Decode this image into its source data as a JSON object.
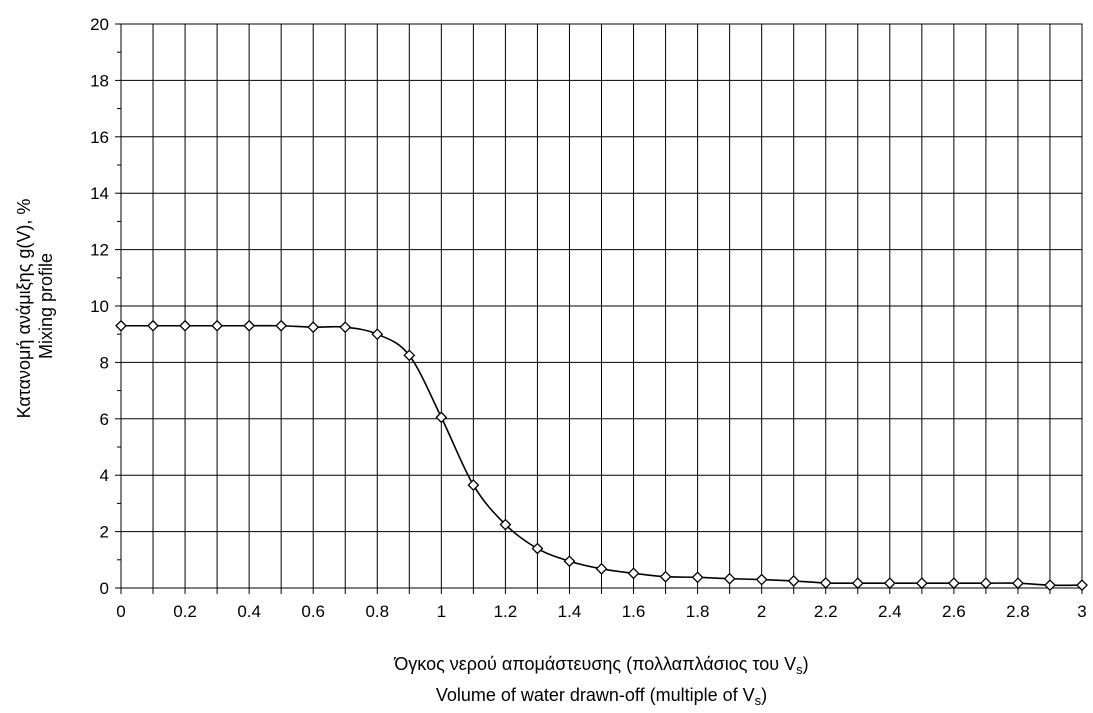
{
  "chart_data": {
    "type": "line",
    "title": "",
    "xlabel_lines": [
      {
        "text": "Όγκος νερού απομάστευσης (πολλαπλάσιος του V",
        "sub": "s",
        "suffix": ")"
      },
      {
        "text": "Volume of water drawn-off (multiple of V",
        "sub": "s",
        "suffix": ")"
      }
    ],
    "ylabel_lines": [
      "Κατανομή ανάμιξης g(V), %",
      "Mixing profile"
    ],
    "xlim": [
      0,
      3
    ],
    "ylim": [
      0,
      20
    ],
    "x_ticks": [
      0,
      0.2,
      0.4,
      0.6,
      0.8,
      1,
      1.2,
      1.4,
      1.6,
      1.8,
      2,
      2.2,
      2.4,
      2.6,
      2.8,
      3
    ],
    "x_tick_labels": [
      "0",
      "0.2",
      "0.4",
      "0.6",
      "0.8",
      "1",
      "1.2",
      "1.4",
      "1.6",
      "1.8",
      "2",
      "2.2",
      "2.4",
      "2.6",
      "2.8",
      "3"
    ],
    "y_ticks": [
      0,
      2,
      4,
      6,
      8,
      10,
      12,
      14,
      16,
      18,
      20
    ],
    "y_tick_labels": [
      "0",
      "2",
      "4",
      "6",
      "8",
      "10",
      "12",
      "14",
      "16",
      "18",
      "20"
    ],
    "grid": true,
    "marker": "diamond",
    "color": "#000000",
    "series": [
      {
        "x": [
          0,
          0.1,
          0.2,
          0.3,
          0.4,
          0.5,
          0.6,
          0.7,
          0.8,
          0.9,
          1.0,
          1.1,
          1.2,
          1.3,
          1.4,
          1.5,
          1.6,
          1.7,
          1.8,
          1.9,
          2.0,
          2.1,
          2.2,
          2.3,
          2.4,
          2.5,
          2.6,
          2.7,
          2.8,
          2.9,
          3.0
        ],
        "y": [
          9.3,
          9.3,
          9.3,
          9.3,
          9.3,
          9.3,
          9.25,
          9.25,
          9.0,
          8.25,
          6.05,
          3.65,
          2.25,
          1.4,
          0.95,
          0.68,
          0.52,
          0.4,
          0.38,
          0.33,
          0.3,
          0.25,
          0.18,
          0.17,
          0.17,
          0.17,
          0.17,
          0.17,
          0.17,
          0.1,
          0.1
        ]
      }
    ]
  }
}
